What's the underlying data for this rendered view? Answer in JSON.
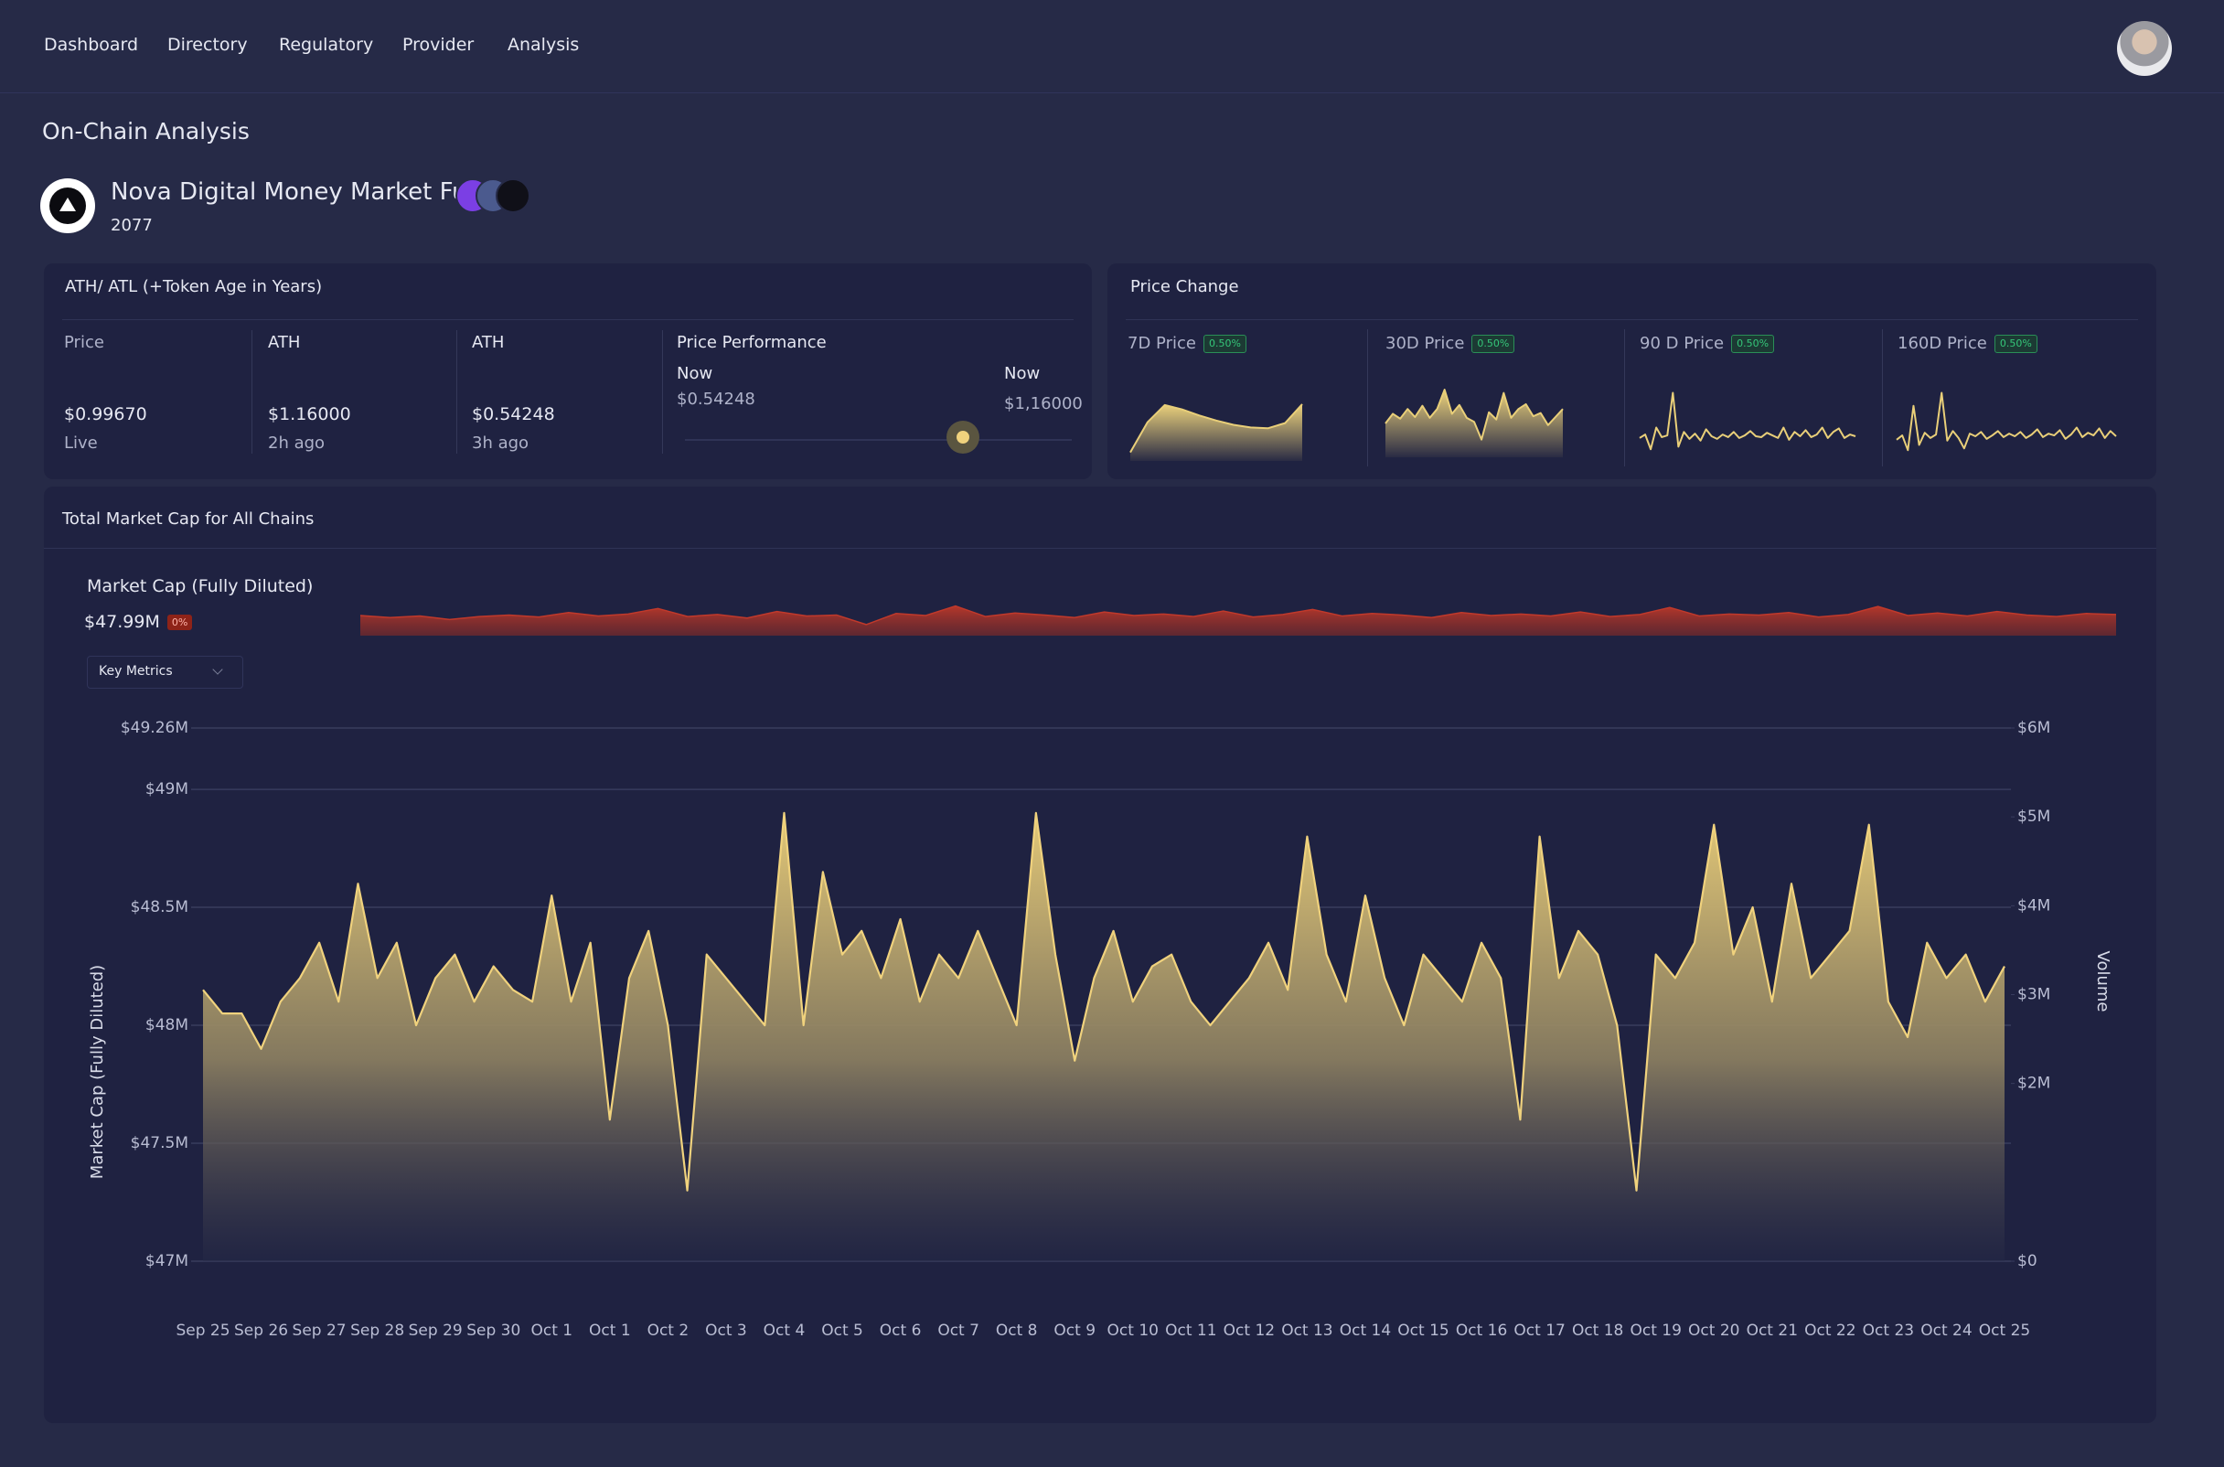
{
  "nav": {
    "items": [
      "Dashboard",
      "Directory",
      "Regulatory",
      "Provider",
      "Analysis"
    ]
  },
  "page_title": "On-Chain Analysis",
  "fund": {
    "name": "Nova Digital Money Market Fund",
    "code": "2077"
  },
  "ath_card": {
    "title": "ATH/ ATL (+Token Age in Years)",
    "stats": [
      {
        "label": "Price",
        "value": "$0.99670",
        "sub": "Live"
      },
      {
        "label": "ATH",
        "value": "$1.16000",
        "sub": "2h ago"
      },
      {
        "label": "ATH",
        "value": "$0.54248",
        "sub": "3h ago"
      }
    ],
    "performance": {
      "label": "Price Performance",
      "left_label": "Now",
      "left_value": "$0.54248",
      "right_label": "Now",
      "right_value": "$1,16000"
    }
  },
  "price_change": {
    "title": "Price Change"
  },
  "market_cap_card": {
    "title": "Total Market Cap for All Chains",
    "dropdown": "Key Metrics"
  },
  "chart_data": [
    {
      "type": "area",
      "title": "7D Price",
      "change_label": "0.50%",
      "color": "#e9cf79",
      "ylim": [
        0,
        10
      ],
      "values": [
        1,
        4.5,
        6.5,
        6,
        5.3,
        4.7,
        4.2,
        3.9,
        3.8,
        4.4,
        6.6
      ]
    },
    {
      "type": "area",
      "title": "30D Price",
      "change_label": "0.50%",
      "color": "#e9cf79",
      "ylim": [
        0,
        10
      ],
      "values": [
        4.2,
        5.4,
        4.8,
        6,
        5,
        6.4,
        4.9,
        6,
        8.4,
        5.4,
        6.5,
        4.9,
        4.4,
        2.2,
        5.6,
        4.7,
        8,
        4.9,
        6,
        6.6,
        5.1,
        5.5,
        4,
        5,
        6
      ]
    },
    {
      "type": "line",
      "title": "90 D Price",
      "change_label": "0.50%",
      "color": "#e9cf79",
      "ylim": [
        0,
        10
      ],
      "values": [
        3.8,
        4.2,
        2.5,
        5,
        3.9,
        4.1,
        9,
        2.8,
        4.5,
        3.7,
        4.3,
        3.5,
        4.8,
        4,
        3.7,
        4.2,
        3.9,
        4.5,
        3.8,
        4.1,
        4.6,
        4,
        3.9,
        4.4,
        4.1,
        3.8,
        5,
        3.6,
        4.5,
        4,
        4.7,
        3.9,
        4.2,
        5,
        3.8,
        4.5,
        4.9,
        3.8,
        4.2,
        4
      ]
    },
    {
      "type": "line",
      "title": "160D Price",
      "change_label": "0.50%",
      "color": "#e9cf79",
      "ylim": [
        0,
        10
      ],
      "values": [
        3.6,
        4.1,
        2.4,
        7.5,
        3,
        4.4,
        3.8,
        4.2,
        9,
        3.5,
        4.6,
        3.8,
        2.6,
        4.3,
        4,
        4.5,
        3.7,
        4.1,
        4.6,
        3.9,
        4.3,
        4,
        4.5,
        3.8,
        4.2,
        4.8,
        3.9,
        4.3,
        4.1,
        4.7,
        3.7,
        4.2,
        5,
        3.9,
        4.4,
        4.1,
        4.9,
        3.8,
        4.6,
        4
      ]
    },
    {
      "type": "area",
      "title": "Market Cap (Fully Diluted)",
      "current": "$47.99M",
      "change_label": "0%",
      "color": "#c0392b",
      "ylim": [
        0,
        10
      ],
      "values": [
        4,
        3.6,
        3.9,
        3.2,
        3.8,
        4.1,
        3.7,
        4.6,
        3.9,
        4.3,
        5.4,
        3.8,
        4.2,
        3.5,
        4.8,
        3.9,
        4.1,
        2.2,
        4.4,
        4,
        5.9,
        3.8,
        4.5,
        4.1,
        3.6,
        4.7,
        4,
        4.3,
        3.8,
        4.9,
        3.7,
        4.2,
        5.2,
        3.9,
        4.4,
        4.1,
        3.6,
        4.6,
        4,
        4.3,
        3.9,
        4.7,
        3.8,
        4.2,
        5.6,
        3.9,
        4.3,
        4.1,
        4.6,
        3.7,
        4.2,
        5.8,
        4,
        4.5,
        3.9,
        4.8,
        4.1,
        3.8,
        4.4,
        4.2
      ]
    },
    {
      "type": "area",
      "y_label": "Market Cap (Fully Diluted)",
      "y2_label": "Volume",
      "color": "#f0d27d",
      "grid": true,
      "ylim": [
        47,
        49.26
      ],
      "yticks": [
        {
          "value": 47,
          "label": "$47M"
        },
        {
          "value": 47.5,
          "label": "$47.5M"
        },
        {
          "value": 48,
          "label": "$48M"
        },
        {
          "value": 48.5,
          "label": "$48.5M"
        },
        {
          "value": 49,
          "label": "$49M"
        },
        {
          "value": 49.26,
          "label": "$49.26M"
        }
      ],
      "y2lim": [
        0,
        6
      ],
      "y2ticks": [
        {
          "value": 0,
          "label": "$0"
        },
        {
          "value": 2,
          "label": "$2M"
        },
        {
          "value": 3,
          "label": "$3M"
        },
        {
          "value": 4,
          "label": "$4M"
        },
        {
          "value": 5,
          "label": "$5M"
        },
        {
          "value": 6,
          "label": "$6M"
        }
      ],
      "categories": [
        "Sep 25",
        null,
        null,
        "Sep 26",
        null,
        null,
        "Sep 27",
        null,
        null,
        "Sep 28",
        null,
        null,
        "Sep 29",
        null,
        null,
        "Sep 30",
        null,
        null,
        "Oct 1",
        null,
        null,
        "Oct 1",
        null,
        null,
        "Oct 2",
        null,
        null,
        "Oct 3",
        null,
        null,
        "Oct 4",
        null,
        null,
        "Oct 5",
        null,
        null,
        "Oct 6",
        null,
        null,
        "Oct 7",
        null,
        null,
        "Oct 8",
        null,
        null,
        "Oct 9",
        null,
        null,
        "Oct 10",
        null,
        null,
        "Oct 11",
        null,
        null,
        "Oct 12",
        null,
        null,
        "Oct 13",
        null,
        null,
        "Oct 14",
        null,
        null,
        "Oct 15",
        null,
        null,
        "Oct 16",
        null,
        null,
        "Oct 17",
        null,
        null,
        "Oct 18",
        null,
        null,
        "Oct 19",
        null,
        null,
        "Oct 20",
        null,
        null,
        "Oct 21",
        null,
        null,
        "Oct 22",
        null,
        null,
        "Oct 23",
        null,
        null,
        "Oct 24",
        null,
        null,
        "Oct 25"
      ],
      "values": [
        48.15,
        48.05,
        48.05,
        47.9,
        48.1,
        48.2,
        48.35,
        48.1,
        48.6,
        48.2,
        48.35,
        48.0,
        48.2,
        48.3,
        48.1,
        48.25,
        48.15,
        48.1,
        48.55,
        48.1,
        48.35,
        47.6,
        48.2,
        48.4,
        48.0,
        47.3,
        48.3,
        48.2,
        48.1,
        48.0,
        48.9,
        48.0,
        48.65,
        48.3,
        48.4,
        48.2,
        48.45,
        48.1,
        48.3,
        48.2,
        48.4,
        48.2,
        48.0,
        48.9,
        48.3,
        47.85,
        48.2,
        48.4,
        48.1,
        48.25,
        48.3,
        48.1,
        48.0,
        48.1,
        48.2,
        48.35,
        48.15,
        48.8,
        48.3,
        48.1,
        48.55,
        48.2,
        48.0,
        48.3,
        48.2,
        48.1,
        48.35,
        48.2,
        47.6,
        48.8,
        48.2,
        48.4,
        48.3,
        48.0,
        47.3,
        48.3,
        48.2,
        48.35,
        48.85,
        48.3,
        48.5,
        48.1,
        48.6,
        48.2,
        48.3,
        48.4,
        48.85,
        48.1,
        47.95,
        48.35,
        48.2,
        48.3,
        48.1,
        48.25
      ]
    }
  ]
}
